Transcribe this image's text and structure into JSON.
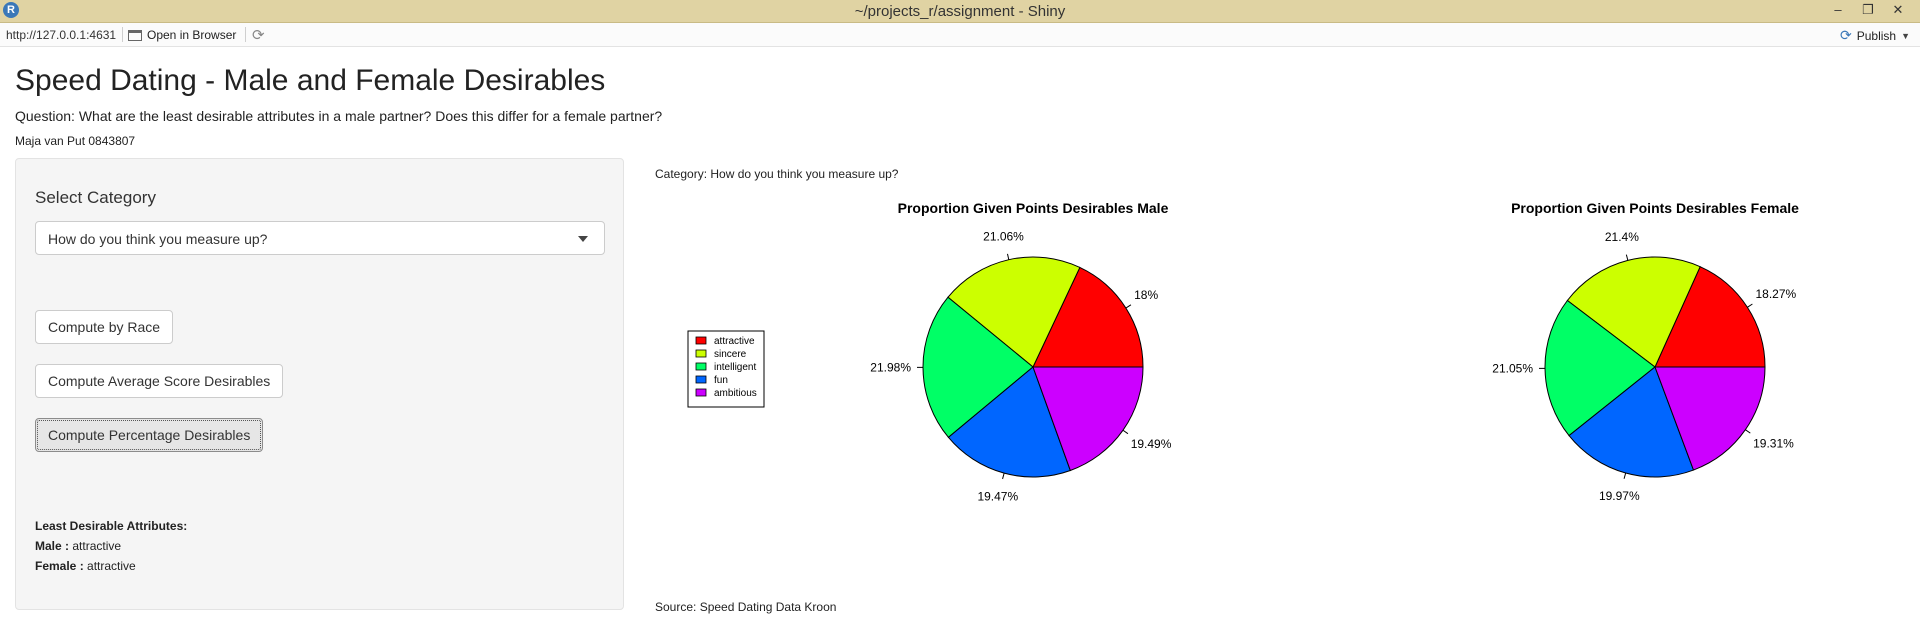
{
  "window": {
    "title": "~/projects_r/assignment - Shiny",
    "app_icon_letter": "R"
  },
  "toolbar": {
    "url": "http://127.0.0.1:4631",
    "open_in_browser": "Open in Browser",
    "publish": "Publish"
  },
  "header": {
    "title": "Speed Dating - Male and Female Desirables",
    "question": "Question: What are the least desirable attributes in a male partner? Does this differ for a female partner?",
    "author": "Maja van Put 0843807"
  },
  "sidebar": {
    "select_label": "Select Category",
    "selected_value": "How do you think you measure up?",
    "buttons": {
      "race": "Compute by Race",
      "average": "Compute Average Score Desirables",
      "percentage": "Compute Percentage Desirables"
    },
    "least_desirable": {
      "heading": "Least Desirable Attributes:",
      "male_label": "Male :",
      "male_value": "attractive",
      "female_label": "Female :",
      "female_value": "attractive"
    }
  },
  "main": {
    "category_text": "Category: How do you think you measure up?",
    "source_text": "Source: Speed Dating Data Kroon"
  },
  "colors": {
    "attractive": "#ff0000",
    "sincere": "#ccff00",
    "intelligent": "#00ff66",
    "fun": "#0066ff",
    "ambitious": "#cc00ff"
  },
  "chart_data": [
    {
      "type": "pie",
      "title": "Proportion Given Points Desirables Male",
      "categories": [
        "attractive",
        "sincere",
        "intelligent",
        "fun",
        "ambitious"
      ],
      "values": [
        18,
        21.06,
        21.98,
        19.47,
        19.49
      ],
      "labels": [
        "18%",
        "21.06%",
        "21.98%",
        "19.47%",
        "19.49%"
      ],
      "legend": {
        "placement": "left",
        "entries": [
          "attractive",
          "sincere",
          "intelligent",
          "fun",
          "ambitious"
        ]
      }
    },
    {
      "type": "pie",
      "title": "Proportion Given Points Desirables Female",
      "categories": [
        "attractive",
        "sincere",
        "intelligent",
        "fun",
        "ambitious"
      ],
      "values": [
        18.27,
        21.4,
        21.05,
        19.97,
        19.31
      ],
      "labels": [
        "18.27%",
        "21.4%",
        "21.05%",
        "19.97%",
        "19.31%"
      ]
    }
  ]
}
